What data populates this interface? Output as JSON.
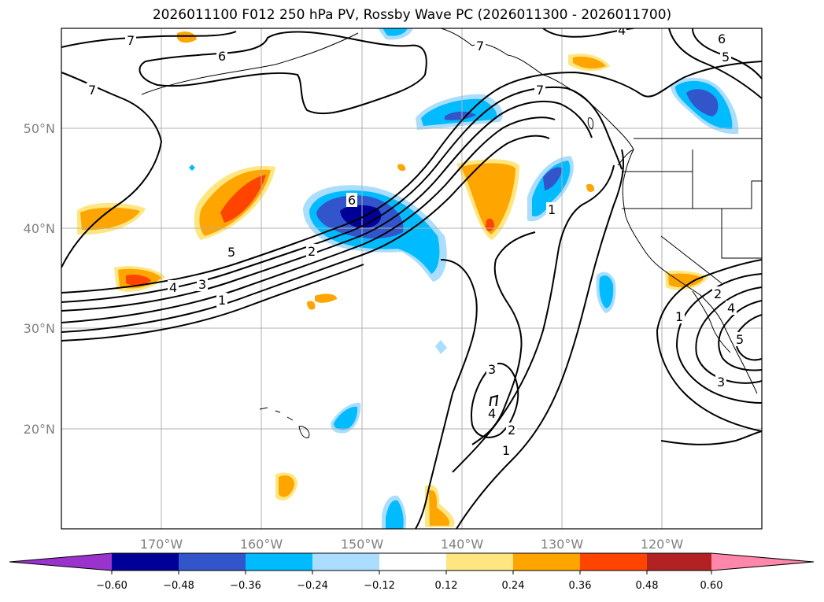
{
  "title": "2026011100 F012 250 hPa PV, Rossby Wave PC (2026011300 - 2026011700)",
  "lat_labels": [
    "50°N",
    "40°N",
    "30°N",
    "20°N"
  ],
  "lon_labels": [
    "170°W",
    "160°W",
    "150°W",
    "140°W",
    "130°W",
    "120°W"
  ],
  "colorbar": {
    "ticks": [
      "−0.60",
      "−0.48",
      "−0.36",
      "−0.24",
      "−0.12",
      "0.12",
      "0.24",
      "0.36",
      "0.48",
      "0.60"
    ],
    "colors": [
      "#9933cc",
      "#000099",
      "#3355cc",
      "#00bbff",
      "#aaddff",
      "#ffffff",
      "#ffe680",
      "#ffa500",
      "#ff4400",
      "#b22222",
      "#ff88aa"
    ]
  },
  "contour_labels": {
    "c1": "7",
    "c2": "6",
    "c3": "7",
    "c4": "6",
    "c5": "5",
    "c6": "7",
    "c7": "4",
    "c8": "7",
    "c9": "6",
    "c10": "5",
    "c11": "4",
    "c12": "3",
    "c13": "1",
    "c14": "2",
    "c15": "1",
    "c16": "3",
    "c17": "4",
    "c18": "2",
    "c19": "1",
    "c20": "1",
    "c21": "2",
    "c22": "4",
    "c23": "5",
    "c24": "3"
  },
  "fill_colors": {
    "yellow": "#ffe680",
    "orange": "#ffa500",
    "red": "#ff4400",
    "lightblue": "#aaddff",
    "cyan": "#00bbff",
    "blue": "#3355cc",
    "navy": "#000099"
  }
}
